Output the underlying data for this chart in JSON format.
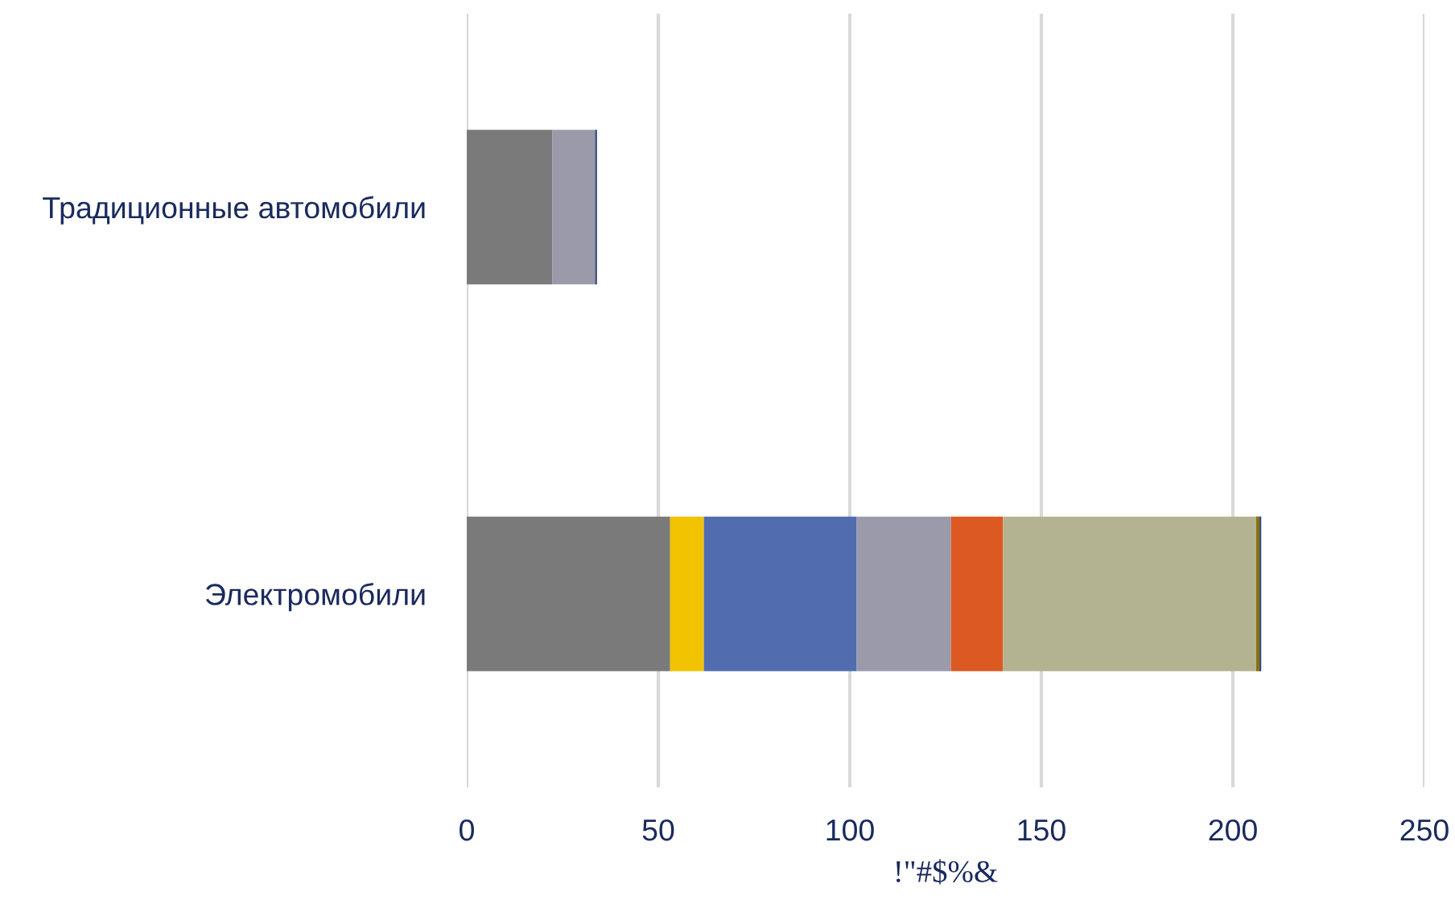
{
  "chart_data": {
    "type": "bar",
    "orientation": "horizontal",
    "stacked": true,
    "xlabel": "!\"#$%&",
    "categories": [
      "Традиционные автомобили",
      "Электромобили"
    ],
    "series": [
      {
        "color": "#7a7a7a",
        "values": [
          22.3,
          53.1
        ]
      },
      {
        "color": "#f2c300",
        "values": [
          0,
          8.8
        ]
      },
      {
        "color": "#516db0",
        "values": [
          0,
          39.9
        ]
      },
      {
        "color": "#9a9aab",
        "values": [
          11.2,
          24.6
        ]
      },
      {
        "color": "#dc5922",
        "values": [
          0,
          13.6
        ]
      },
      {
        "color": "#b3b391",
        "values": [
          0,
          66.1
        ]
      },
      {
        "color": "#8a6d00",
        "values": [
          0,
          0.8
        ]
      },
      {
        "color": "#334a78",
        "values": [
          0.5,
          0.5
        ]
      }
    ],
    "xlim": [
      0,
      250
    ],
    "xticks": [
      0,
      50,
      100,
      150,
      200,
      250
    ],
    "grid": "x"
  }
}
